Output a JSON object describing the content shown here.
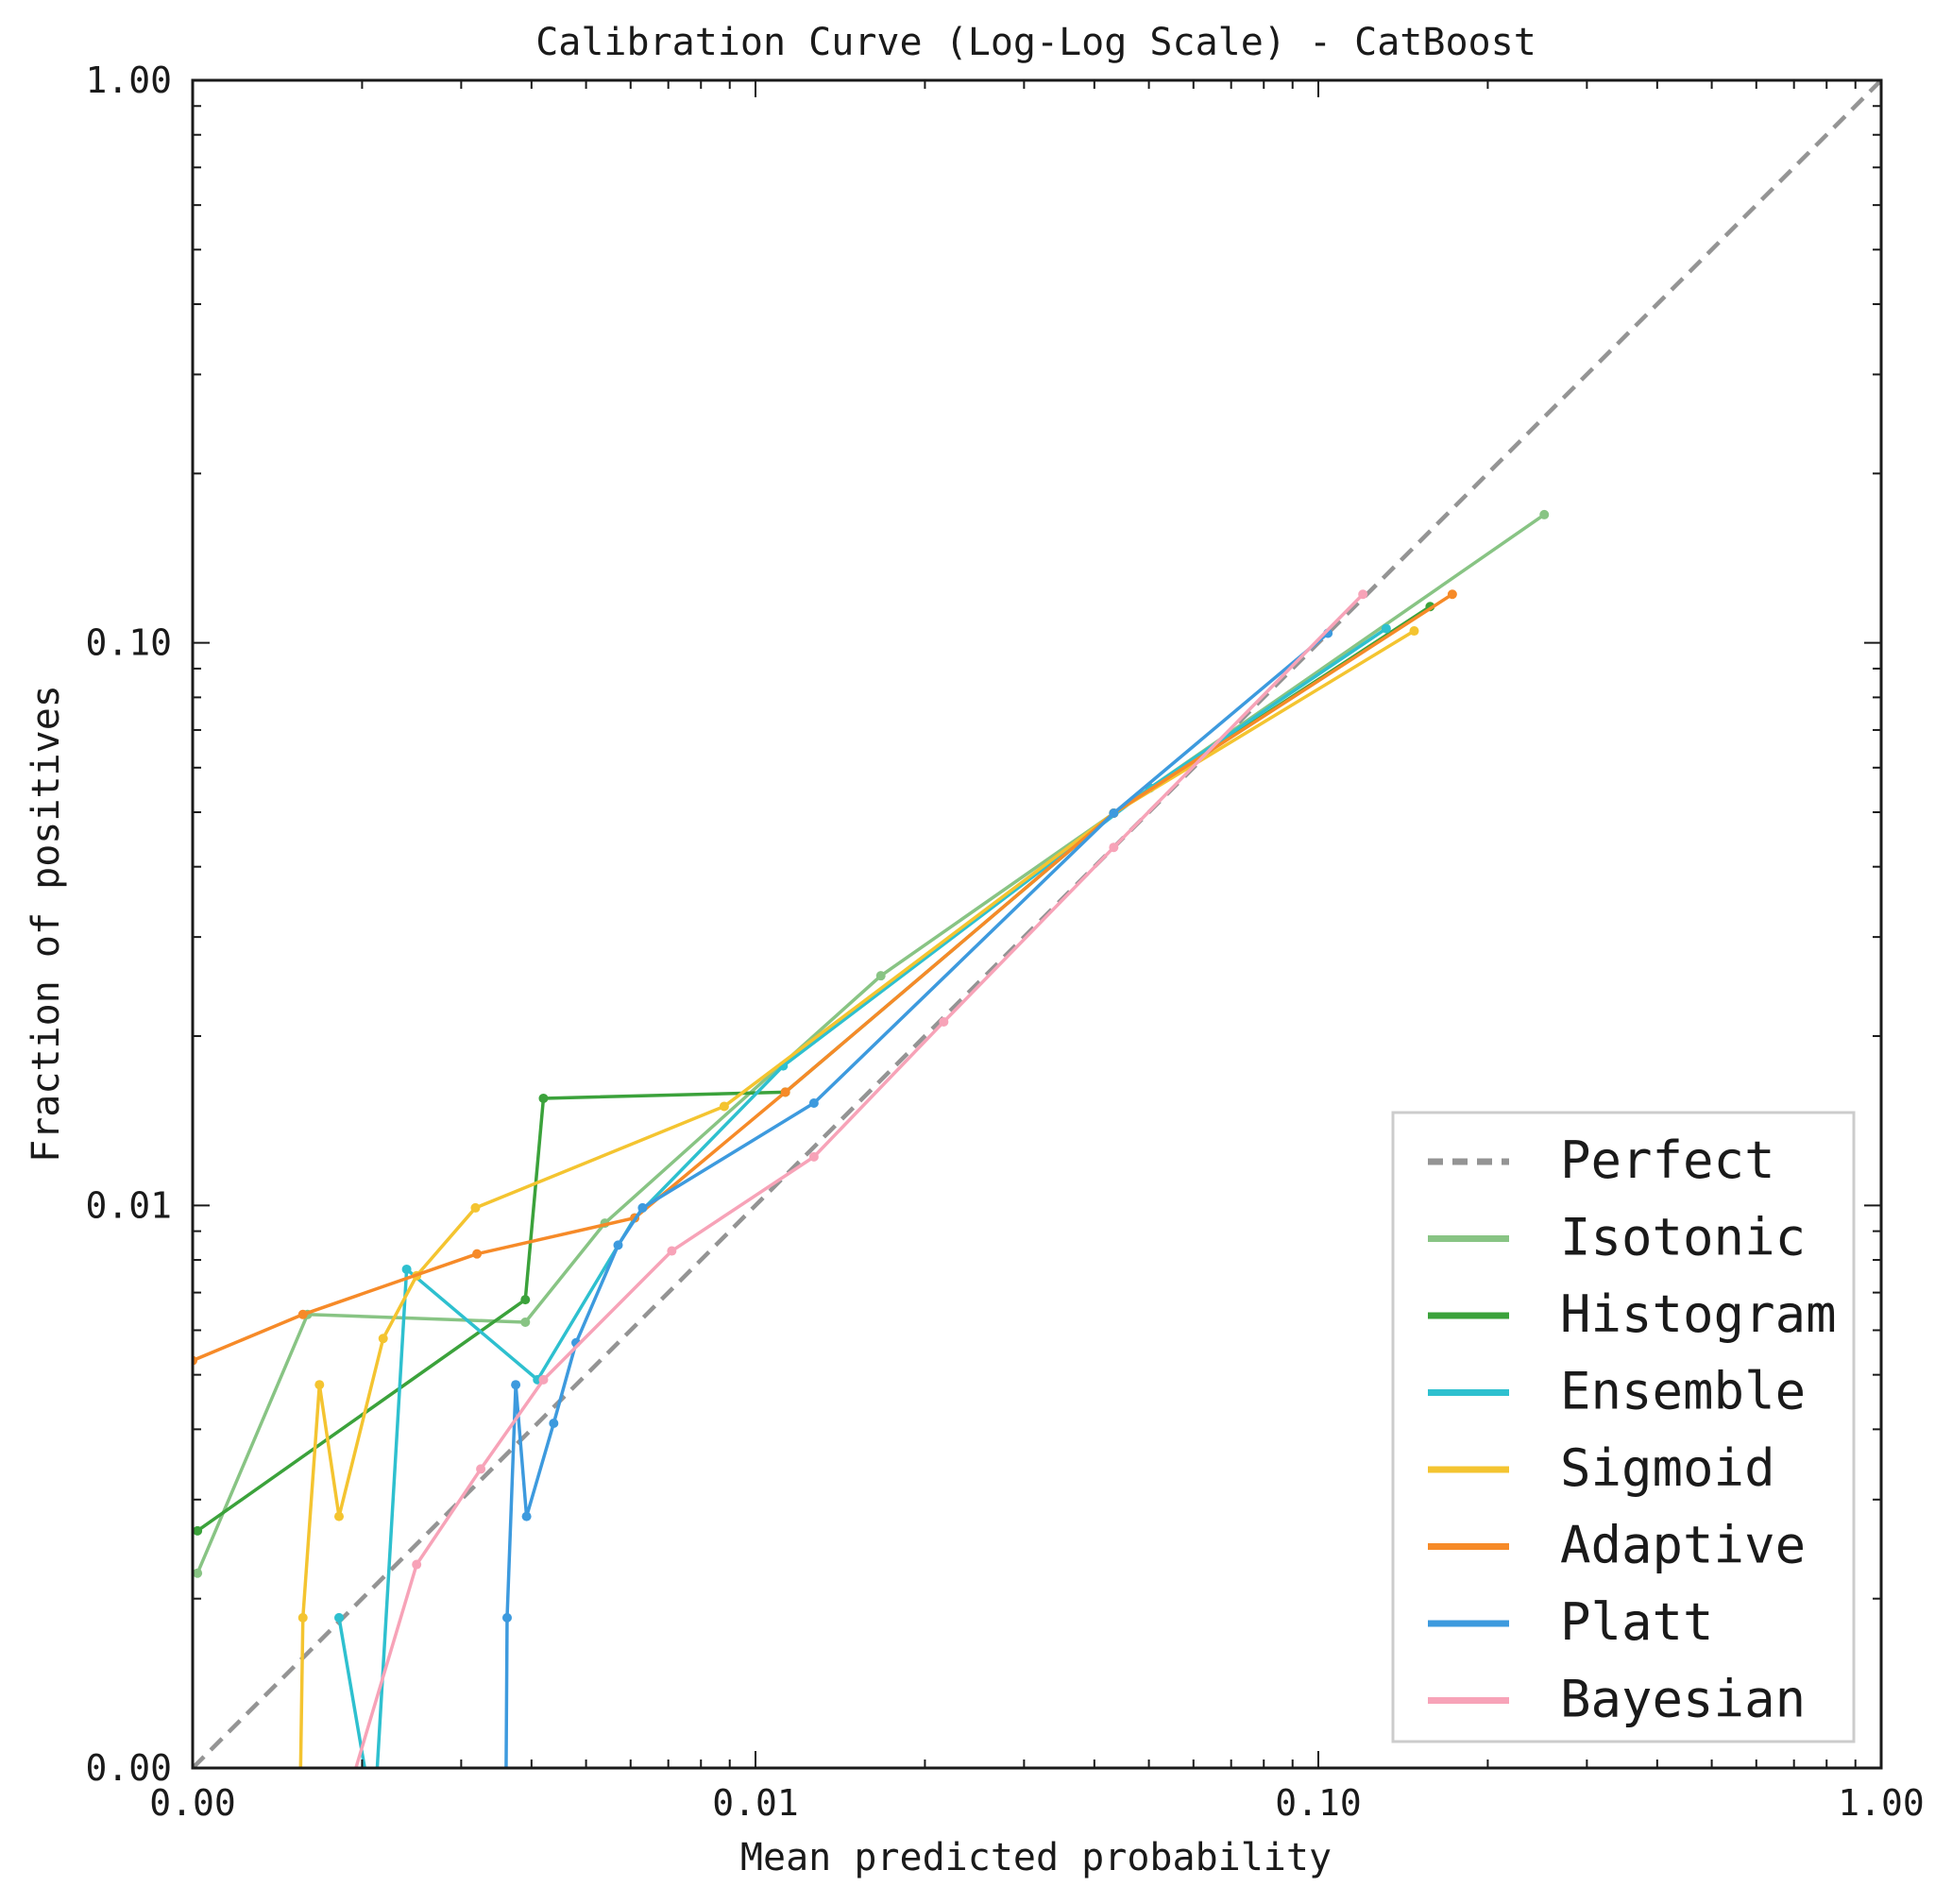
{
  "chart_data": {
    "type": "line",
    "title": "Calibration Curve (Log-Log Scale) - CatBoost",
    "xlabel": "Mean predicted probability",
    "ylabel": "Fraction of positives",
    "xscale": "log",
    "yscale": "log",
    "xlim": [
      0.001,
      1.0
    ],
    "ylim": [
      0.001,
      1.0
    ],
    "xticks": [
      {
        "value": 0.001,
        "label": "0.00"
      },
      {
        "value": 0.01,
        "label": "0.01"
      },
      {
        "value": 0.1,
        "label": "0.10"
      },
      {
        "value": 1.0,
        "label": "1.00"
      }
    ],
    "yticks": [
      {
        "value": 0.001,
        "label": "0.00"
      },
      {
        "value": 0.01,
        "label": "0.01"
      },
      {
        "value": 0.1,
        "label": "0.10"
      },
      {
        "value": 1.0,
        "label": "1.00"
      }
    ],
    "grid": false,
    "legend_position": "lower-right",
    "perfect": {
      "name": "Perfect",
      "color": "#949494",
      "dash": "dashed"
    },
    "series": [
      {
        "name": "Isotonic",
        "color": "#88c484",
        "points": [
          [
            0.00102,
            0.00222
          ],
          [
            0.0016,
            0.0064
          ],
          [
            0.0039,
            0.0062
          ],
          [
            0.0054,
            0.0093
          ],
          [
            0.0167,
            0.0256
          ],
          [
            0.0502,
            0.0552
          ],
          [
            0.252,
            0.169
          ]
        ]
      },
      {
        "name": "Histogram",
        "color": "#3ba23b",
        "points": [
          [
            0.00102,
            0.00264
          ],
          [
            0.0039,
            0.0068
          ],
          [
            0.0042,
            0.0155
          ],
          [
            0.0113,
            0.0159
          ],
          [
            0.0433,
            0.0498
          ],
          [
            0.158,
            0.116
          ]
        ]
      },
      {
        "name": "Ensemble",
        "color": "#2ec0cf",
        "points": [
          [
            0.00182,
            0.00185
          ],
          [
            0.0021,
            0.0008
          ],
          [
            0.0024,
            0.0077
          ],
          [
            0.0041,
            0.0049
          ],
          [
            0.0061,
            0.0095
          ],
          [
            0.0112,
            0.0177
          ],
          [
            0.0502,
            0.0552
          ],
          [
            0.132,
            0.106
          ]
        ]
      },
      {
        "name": "Sigmoid",
        "color": "#f4c430",
        "points": [
          [
            0.00155,
            0.0008
          ],
          [
            0.00157,
            0.00185
          ],
          [
            0.00168,
            0.0048
          ],
          [
            0.00182,
            0.0028
          ],
          [
            0.00218,
            0.0058
          ],
          [
            0.0025,
            0.0075
          ],
          [
            0.00318,
            0.0099
          ],
          [
            0.0088,
            0.015
          ],
          [
            0.0433,
            0.0498
          ],
          [
            0.148,
            0.105
          ]
        ]
      },
      {
        "name": "Adaptive",
        "color": "#f68a28",
        "points": [
          [
            0.001,
            0.0053
          ],
          [
            0.00157,
            0.0064
          ],
          [
            0.0032,
            0.0082
          ],
          [
            0.0061,
            0.0095
          ],
          [
            0.0113,
            0.0159
          ],
          [
            0.0433,
            0.0498
          ],
          [
            0.173,
            0.122
          ]
        ]
      },
      {
        "name": "Platt",
        "color": "#3d9ade",
        "points": [
          [
            0.0036,
            0.0008
          ],
          [
            0.00362,
            0.00185
          ],
          [
            0.00375,
            0.0048
          ],
          [
            0.00392,
            0.0028
          ],
          [
            0.00438,
            0.0041
          ],
          [
            0.0048,
            0.0057
          ],
          [
            0.0057,
            0.0085
          ],
          [
            0.0063,
            0.0099
          ],
          [
            0.0127,
            0.0152
          ],
          [
            0.0433,
            0.0498
          ],
          [
            0.104,
            0.104
          ]
        ]
      },
      {
        "name": "Bayesian",
        "color": "#f7a3b8",
        "points": [
          [
            0.00195,
            0.001
          ],
          [
            0.0025,
            0.0023
          ],
          [
            0.00325,
            0.0034
          ],
          [
            0.0042,
            0.0049
          ],
          [
            0.0071,
            0.0083
          ],
          [
            0.0127,
            0.0122
          ],
          [
            0.0216,
            0.0212
          ],
          [
            0.0433,
            0.0433
          ],
          [
            0.12,
            0.122
          ]
        ]
      }
    ],
    "series_extensions": {
      "Ensemble": [
        [
          0.00182,
          0.00185
        ],
        [
          0.0021,
          0.0008
        ]
      ],
      "Sigmoid": [
        [
          0.00155,
          0.0008
        ]
      ],
      "Platt": [
        [
          0.0036,
          0.0008
        ]
      ]
    }
  }
}
